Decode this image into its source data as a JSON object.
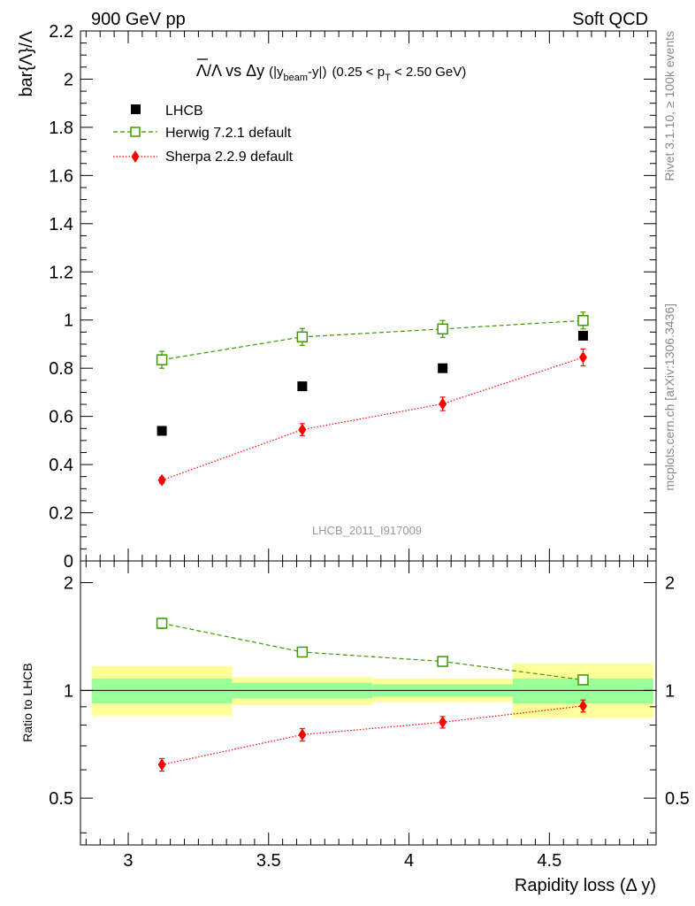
{
  "header": {
    "left": "900 GeV pp",
    "right": "Soft QCD"
  },
  "side_labels": {
    "rivet": "Rivet 3.1.10, ≥ 100k events",
    "mcplots": "mcplots.cern.ch [arXiv:1306.3436]"
  },
  "chart_data": [
    {
      "type": "scatter",
      "title": {
        "ratio_symbol": "Λ/Λ",
        "vs": " vs ",
        "var": "Δy",
        "definition_prefix": "(|y",
        "definition_sub": "beam",
        "definition_suffix": "-y|)",
        "cut_prefix": "(0.25 < p",
        "cut_sub": "T",
        "cut_suffix": " < 2.50 GeV)"
      },
      "ylabel": "bar{Λ}/Λ",
      "xlim": [
        2.83,
        4.88
      ],
      "ylim": [
        0,
        2.2
      ],
      "y_ticks": [
        "0",
        "0.2",
        "0.4",
        "0.6",
        "0.8",
        "1",
        "1.2",
        "1.4",
        "1.6",
        "1.8",
        "2",
        "2.2"
      ],
      "watermark": "LHCB_2011_I917009",
      "legend_position": "top-left",
      "x": [
        3.12,
        3.62,
        4.12,
        4.62
      ],
      "series": [
        {
          "name": "LHCB",
          "color": "#000000",
          "marker": "filled-square",
          "line": "none",
          "values": [
            0.54,
            0.725,
            0.8,
            0.935
          ],
          "errors": [
            0.005,
            0.005,
            0.005,
            0.005
          ]
        },
        {
          "name": "Herwig 7.2.1 default",
          "color": "#3c9a00",
          "marker": "open-square",
          "line": "dashed",
          "values": [
            0.835,
            0.93,
            0.963,
            0.998
          ],
          "errors": [
            0.035,
            0.035,
            0.035,
            0.035
          ]
        },
        {
          "name": "Sherpa 2.2.9 default",
          "color": "#ff0000",
          "marker": "filled-diamond",
          "line": "dotted",
          "values": [
            0.335,
            0.545,
            0.652,
            0.845
          ],
          "errors": [
            0.012,
            0.025,
            0.028,
            0.035
          ]
        }
      ]
    },
    {
      "type": "scatter",
      "ylabel": "Ratio to LHCB",
      "xlabel": "Rapidity loss (Δ y)",
      "xlim": [
        2.83,
        4.88
      ],
      "ylim": [
        0.37,
        2.3
      ],
      "y_scale": "log",
      "y_ticks_left": [
        "0.5",
        "1",
        "2"
      ],
      "y_ticks_right": [
        "0.5",
        "1",
        "2"
      ],
      "x_ticks": [
        "3",
        "3.5",
        "4",
        "4.5"
      ],
      "bands": {
        "edges": [
          2.87,
          3.37,
          3.87,
          4.37,
          4.87
        ],
        "yellow": [
          [
            0.85,
            1.17
          ],
          [
            0.91,
            1.09
          ],
          [
            0.93,
            1.08
          ],
          [
            0.84,
            1.19
          ]
        ],
        "green": [
          [
            0.92,
            1.08
          ],
          [
            0.95,
            1.05
          ],
          [
            0.96,
            1.04
          ],
          [
            0.92,
            1.08
          ]
        ],
        "yellow_color": "#ffff99",
        "green_color": "#99ff99"
      },
      "x": [
        3.12,
        3.62,
        4.12,
        4.62
      ],
      "series": [
        {
          "name": "Herwig 7.2.1 default",
          "color": "#3c9a00",
          "marker": "open-square",
          "line": "dashed",
          "values": [
            1.54,
            1.28,
            1.205,
            1.07
          ],
          "errors": [
            0.05,
            0.04,
            0.03,
            0.03
          ]
        },
        {
          "name": "Sherpa 2.2.9 default",
          "color": "#ff0000",
          "marker": "filled-diamond",
          "line": "dotted",
          "values": [
            0.62,
            0.752,
            0.815,
            0.905
          ],
          "errors": [
            0.025,
            0.03,
            0.03,
            0.035
          ]
        }
      ]
    }
  ]
}
